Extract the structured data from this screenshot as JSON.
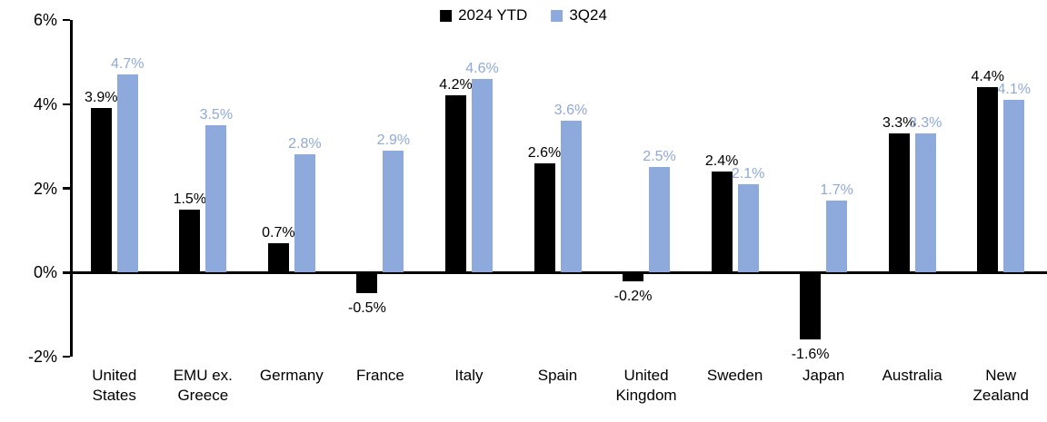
{
  "chart_data": {
    "type": "bar",
    "title": "",
    "categories": [
      "United States",
      "EMU ex. Greece",
      "Germany",
      "France",
      "Italy",
      "Spain",
      "United Kingdom",
      "Sweden",
      "Japan",
      "Australia",
      "New Zealand"
    ],
    "series": [
      {
        "name": "2024 YTD",
        "color": "#000000",
        "values": [
          3.9,
          1.5,
          0.7,
          -0.5,
          4.2,
          2.6,
          -0.2,
          2.4,
          -1.6,
          3.3,
          4.4
        ]
      },
      {
        "name": "3Q24",
        "color": "#8EA9DB",
        "values": [
          4.7,
          3.5,
          2.8,
          2.9,
          4.6,
          3.6,
          2.5,
          2.1,
          1.7,
          3.3,
          4.1
        ]
      }
    ],
    "value_label_suffix": "%",
    "yticks": {
      "values": [
        6,
        4,
        2,
        0,
        -2
      ],
      "labels": [
        "6%",
        "4%",
        "2%",
        "0%",
        "-2%"
      ]
    },
    "ylim": [
      -2,
      6
    ],
    "grid": false,
    "legend_position": "top-center"
  },
  "legend": {
    "series1_label": "2024 YTD",
    "series2_label": "3Q24"
  },
  "colors": {
    "series1": "#000000",
    "series2": "#8EA9DB",
    "axis": "#000000",
    "background": "#FFFFFF"
  }
}
